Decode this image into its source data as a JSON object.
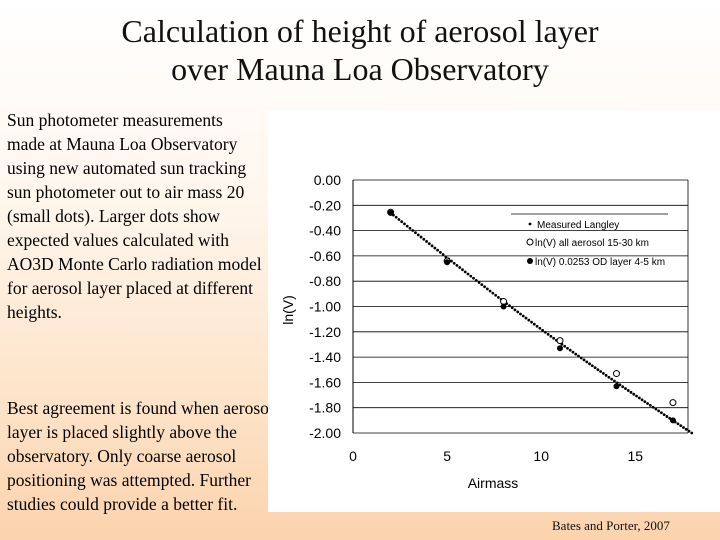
{
  "title_line1": "Calculation of height of aerosol layer",
  "title_line2": "over Mauna Loa Observatory",
  "paragraph1": "Sun photometer measurements made at Mauna Loa Observatory using new automated sun tracking sun photometer out to air mass 20 (small dots). Larger dots show expected values calculated with AO3D Monte Carlo radiation model for aerosol layer placed at different heights.",
  "paragraph2": "Best agreement is found when aerosol layer is placed slightly above the observatory. Only coarse aerosol positioning was attempted. Further studies could provide a better fit.",
  "citation": "Bates and Porter, 2007",
  "chart_data": {
    "type": "scatter",
    "xlabel": "Airmass",
    "ylabel": "ln(V)",
    "xlim": [
      0,
      18
    ],
    "ylim": [
      -2.0,
      0.0
    ],
    "x_ticks": [
      "0",
      "5",
      "10",
      "15"
    ],
    "x_tick_values": [
      0,
      5,
      10,
      15
    ],
    "y_ticks": [
      "0.00",
      "-0.20",
      "-0.40",
      "-0.60",
      "-0.80",
      "-1.00",
      "-1.20",
      "-1.40",
      "-1.60",
      "-1.80",
      "-2.00"
    ],
    "y_tick_values": [
      0.0,
      -0.2,
      -0.4,
      -0.6,
      -0.8,
      -1.0,
      -1.2,
      -1.4,
      -1.6,
      -1.8,
      -2.0
    ],
    "grid": "horizontal",
    "legend_position": "top-right",
    "series": [
      {
        "name": "Measured Langley",
        "marker": "small-dot",
        "color": "#000000",
        "x_range": [
          2.0,
          18.0
        ],
        "y_range": [
          -0.26,
          -2.0
        ]
      },
      {
        "name": "ln(V) all aerosol 15-30 km",
        "marker": "open-circle",
        "color": "#000000",
        "x": [
          2.0,
          5.0,
          8.0,
          11.0,
          14.0,
          17.0
        ],
        "y": [
          -0.255,
          -0.64,
          -0.96,
          -1.27,
          -1.53,
          -1.76
        ]
      },
      {
        "name": "ln(V) 0.0253 OD layer 4-5 km",
        "marker": "filled-circle",
        "color": "#000000",
        "x": [
          2.0,
          5.0,
          8.0,
          11.0,
          14.0,
          17.0
        ],
        "y": [
          -0.26,
          -0.65,
          -1.0,
          -1.33,
          -1.63,
          -1.9
        ]
      }
    ]
  }
}
